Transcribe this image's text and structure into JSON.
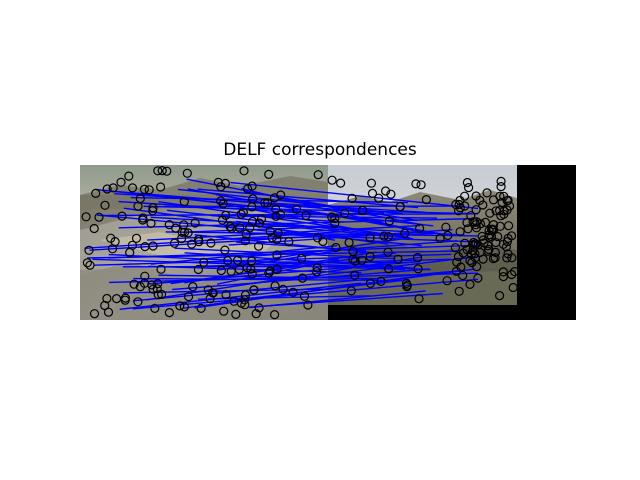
{
  "figure": {
    "title": "DELF correspondences"
  },
  "panels": {
    "left_image": "mountain-landscape-photo",
    "right_image": "mountain-landscape-photo",
    "padding_color": "#000000"
  },
  "colors": {
    "match_line": "#0000ff",
    "keypoint_marker": "#000000",
    "background": "#ffffff"
  },
  "markers": {
    "shape": "circle-outline"
  }
}
